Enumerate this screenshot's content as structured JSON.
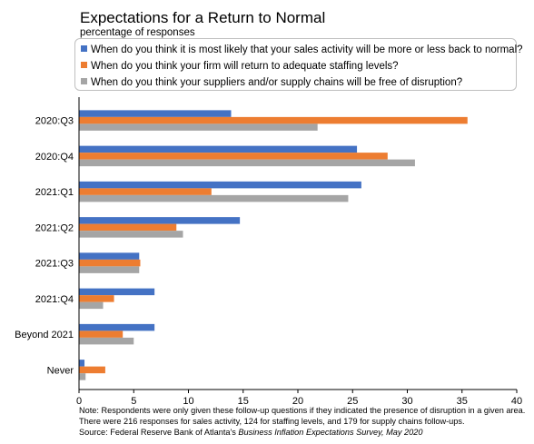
{
  "chart_data": {
    "type": "bar",
    "orientation": "horizontal",
    "title": "Expectations for a Return to Normal",
    "subtitle": "percentage of responses",
    "categories": [
      "2020:Q3",
      "2020:Q4",
      "2021:Q1",
      "2021:Q2",
      "2021:Q3",
      "2021:Q4",
      "Beyond 2021",
      "Never"
    ],
    "series": [
      {
        "name": "When do you think it is most likely that your sales activity will be more or less back to normal?",
        "color": "#4472c4",
        "values": [
          13.9,
          25.4,
          25.8,
          14.7,
          5.5,
          6.9,
          6.9,
          0.5
        ]
      },
      {
        "name": "When do you think your firm will return to adequate staffing levels?",
        "color": "#ed7d31",
        "values": [
          35.5,
          28.2,
          12.1,
          8.9,
          5.6,
          3.2,
          4.0,
          2.4
        ]
      },
      {
        "name": "When do you think your suppliers and/or supply chains will be free of disruption?",
        "color": "#a5a5a5",
        "values": [
          21.8,
          30.7,
          24.6,
          9.5,
          5.5,
          2.2,
          5.0,
          0.6
        ]
      }
    ],
    "xlim": [
      0,
      40
    ],
    "xticks": [
      0,
      5,
      10,
      15,
      20,
      25,
      30,
      35,
      40
    ],
    "grid": false,
    "legend_position": "top"
  },
  "note": {
    "prefix": "Note: Respondents were only given these follow-up questions if they indicated the presence of disruption in a given area. There were 216 responses for sales activity, 124 for staffing levels, and 179 for supply chains follow-ups.",
    "source_prefix": "Source: Federal Reserve Bank of Atlanta's ",
    "source_title": "Business Inflation Expectations Survey, May 2020"
  }
}
